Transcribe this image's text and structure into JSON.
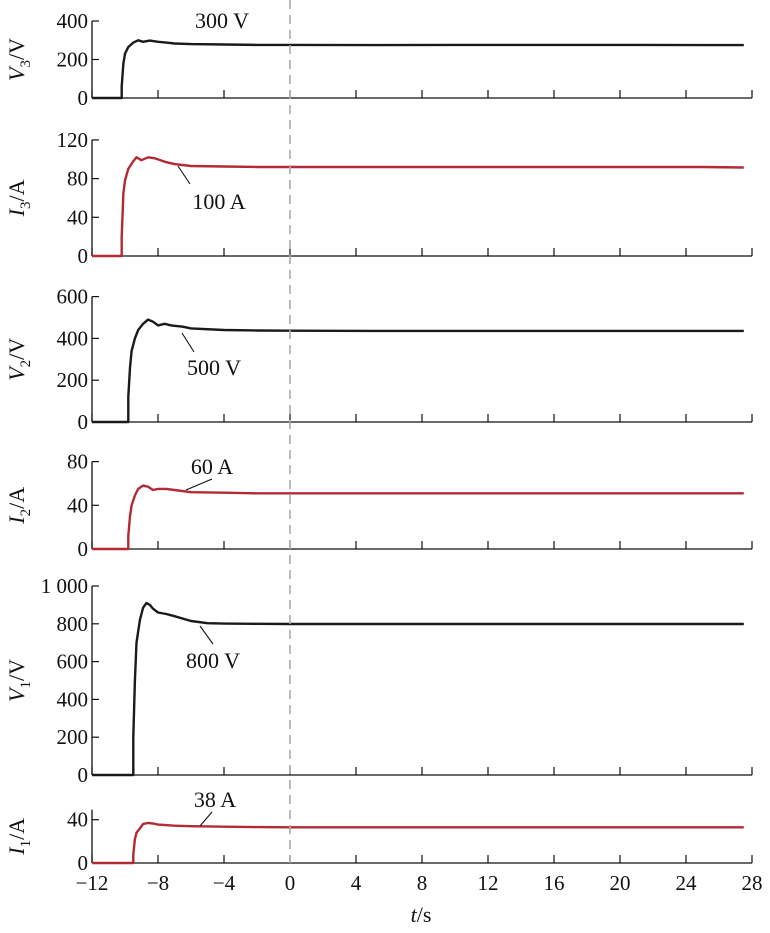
{
  "chart_data": {
    "type": "line",
    "x_axis": {
      "label_italic": "t",
      "label_rest": "/s",
      "range": [
        -12,
        28
      ],
      "ticks": [
        -12,
        -8,
        -4,
        0,
        4,
        8,
        12,
        16,
        20,
        24,
        28
      ],
      "tick_labels": [
        "−12",
        "−8",
        "−4",
        "0",
        "4",
        "8",
        "12",
        "16",
        "20",
        "24",
        "28"
      ]
    },
    "reference_line_x": 0,
    "colors": {
      "voltage": "#1a1a1a",
      "current": "#b22a34",
      "reference": "#aaaaaa"
    },
    "panels": [
      {
        "id": "V3",
        "ylabel_main": "V",
        "ylabel_sub": "3",
        "ylabel_unit": "/V",
        "ylim": [
          0,
          400
        ],
        "yticks": [
          0,
          200,
          400
        ],
        "ytick_labels": [
          "0",
          "200",
          "400"
        ],
        "series_color": "voltage",
        "annotation": "300 V",
        "points": [
          [
            -12,
            0
          ],
          [
            -10.2,
            0
          ],
          [
            -10.2,
            60
          ],
          [
            -10.1,
            180
          ],
          [
            -10.0,
            230
          ],
          [
            -9.8,
            265
          ],
          [
            -9.5,
            288
          ],
          [
            -9.2,
            300
          ],
          [
            -8.9,
            292
          ],
          [
            -8.5,
            298
          ],
          [
            -8.0,
            292
          ],
          [
            -7.5,
            288
          ],
          [
            -7,
            283
          ],
          [
            -6,
            280
          ],
          [
            -4,
            278
          ],
          [
            -2,
            276
          ],
          [
            0,
            276
          ],
          [
            5,
            275
          ],
          [
            10,
            276
          ],
          [
            15,
            276
          ],
          [
            20,
            276
          ],
          [
            25,
            275
          ],
          [
            27.5,
            275
          ]
        ]
      },
      {
        "id": "I3",
        "ylabel_main": "I",
        "ylabel_sub": "3",
        "ylabel_unit": "/A",
        "ylim": [
          0,
          120
        ],
        "yticks": [
          0,
          40,
          80,
          120
        ],
        "ytick_labels": [
          "0",
          "40",
          "80",
          "120"
        ],
        "series_color": "current",
        "annotation": "100 A",
        "points": [
          [
            -12,
            0
          ],
          [
            -10.2,
            0
          ],
          [
            -10.2,
            20
          ],
          [
            -10.1,
            65
          ],
          [
            -10.0,
            78
          ],
          [
            -9.8,
            90
          ],
          [
            -9.5,
            98
          ],
          [
            -9.3,
            102
          ],
          [
            -9.0,
            99
          ],
          [
            -8.6,
            102
          ],
          [
            -8.2,
            101
          ],
          [
            -7.5,
            97
          ],
          [
            -7,
            95
          ],
          [
            -6,
            93
          ],
          [
            -4,
            92.5
          ],
          [
            -2,
            92
          ],
          [
            0,
            92
          ],
          [
            5,
            92
          ],
          [
            10,
            92
          ],
          [
            15,
            92
          ],
          [
            20,
            92
          ],
          [
            25,
            92
          ],
          [
            27.5,
            91.5
          ]
        ]
      },
      {
        "id": "V2",
        "ylabel_main": "V",
        "ylabel_sub": "2",
        "ylabel_unit": "/V",
        "ylim": [
          0,
          600
        ],
        "yticks": [
          0,
          200,
          400,
          600
        ],
        "ytick_labels": [
          "0",
          "200",
          "400",
          "600"
        ],
        "series_color": "voltage",
        "annotation": "500 V",
        "points": [
          [
            -12,
            0
          ],
          [
            -9.8,
            0
          ],
          [
            -9.8,
            120
          ],
          [
            -9.7,
            260
          ],
          [
            -9.6,
            340
          ],
          [
            -9.4,
            400
          ],
          [
            -9.2,
            440
          ],
          [
            -8.9,
            470
          ],
          [
            -8.6,
            490
          ],
          [
            -8.3,
            480
          ],
          [
            -8,
            462
          ],
          [
            -7.6,
            470
          ],
          [
            -7.2,
            462
          ],
          [
            -6.5,
            456
          ],
          [
            -6,
            448
          ],
          [
            -4,
            440
          ],
          [
            -2,
            438
          ],
          [
            0,
            437
          ],
          [
            5,
            436
          ],
          [
            10,
            436
          ],
          [
            15,
            436
          ],
          [
            20,
            436
          ],
          [
            25,
            436
          ],
          [
            27.5,
            436
          ]
        ]
      },
      {
        "id": "I2",
        "ylabel_main": "I",
        "ylabel_sub": "2",
        "ylabel_unit": "/A",
        "ylim": [
          0,
          80
        ],
        "yticks": [
          0,
          40,
          80
        ],
        "ytick_labels": [
          "0",
          "40",
          "80"
        ],
        "series_color": "current",
        "annotation": "60 A",
        "points": [
          [
            -12,
            0
          ],
          [
            -9.8,
            0
          ],
          [
            -9.8,
            12
          ],
          [
            -9.7,
            30
          ],
          [
            -9.6,
            40
          ],
          [
            -9.4,
            49
          ],
          [
            -9.2,
            55
          ],
          [
            -8.9,
            58
          ],
          [
            -8.6,
            57
          ],
          [
            -8.3,
            54
          ],
          [
            -8,
            55
          ],
          [
            -7.5,
            55
          ],
          [
            -7,
            54
          ],
          [
            -6,
            52
          ],
          [
            -4,
            51.5
          ],
          [
            -2,
            51
          ],
          [
            0,
            51
          ],
          [
            5,
            51
          ],
          [
            10,
            51
          ],
          [
            15,
            51
          ],
          [
            20,
            51
          ],
          [
            25,
            51
          ],
          [
            27.5,
            51
          ]
        ]
      },
      {
        "id": "V1",
        "ylabel_main": "V",
        "ylabel_sub": "1",
        "ylabel_unit": "/V",
        "ylim": [
          0,
          1000
        ],
        "yticks": [
          0,
          200,
          400,
          600,
          800,
          1000
        ],
        "ytick_labels": [
          "0",
          "200",
          "400",
          "600",
          "800",
          "1 000"
        ],
        "series_color": "voltage",
        "annotation": "800 V",
        "points": [
          [
            -12,
            0
          ],
          [
            -9.5,
            0
          ],
          [
            -9.5,
            200
          ],
          [
            -9.4,
            500
          ],
          [
            -9.3,
            700
          ],
          [
            -9.1,
            820
          ],
          [
            -8.9,
            885
          ],
          [
            -8.7,
            910
          ],
          [
            -8.5,
            900
          ],
          [
            -8.3,
            880
          ],
          [
            -8,
            860
          ],
          [
            -7.5,
            852
          ],
          [
            -7,
            840
          ],
          [
            -6,
            815
          ],
          [
            -5,
            803
          ],
          [
            -4,
            801
          ],
          [
            -2,
            800
          ],
          [
            0,
            799
          ],
          [
            5,
            799
          ],
          [
            10,
            799
          ],
          [
            15,
            799
          ],
          [
            20,
            799
          ],
          [
            25,
            799
          ],
          [
            27.5,
            799
          ]
        ]
      },
      {
        "id": "I1",
        "ylabel_main": "I",
        "ylabel_sub": "1",
        "ylabel_unit": "/A",
        "ylim": [
          0,
          50
        ],
        "yticks": [
          0,
          40
        ],
        "ytick_labels": [
          "0",
          "40"
        ],
        "series_color": "current",
        "annotation": "38 A",
        "points": [
          [
            -12,
            0
          ],
          [
            -9.5,
            0
          ],
          [
            -9.5,
            8
          ],
          [
            -9.4,
            22
          ],
          [
            -9.3,
            28
          ],
          [
            -9.1,
            32
          ],
          [
            -8.9,
            36
          ],
          [
            -8.6,
            37
          ],
          [
            -8.3,
            36.5
          ],
          [
            -8,
            35.5
          ],
          [
            -7,
            34.5
          ],
          [
            -6,
            34
          ],
          [
            -4,
            33.5
          ],
          [
            -2,
            33.2
          ],
          [
            0,
            33
          ],
          [
            5,
            33
          ],
          [
            10,
            33
          ],
          [
            15,
            33
          ],
          [
            20,
            33
          ],
          [
            25,
            33
          ],
          [
            27.5,
            33
          ]
        ]
      }
    ]
  }
}
